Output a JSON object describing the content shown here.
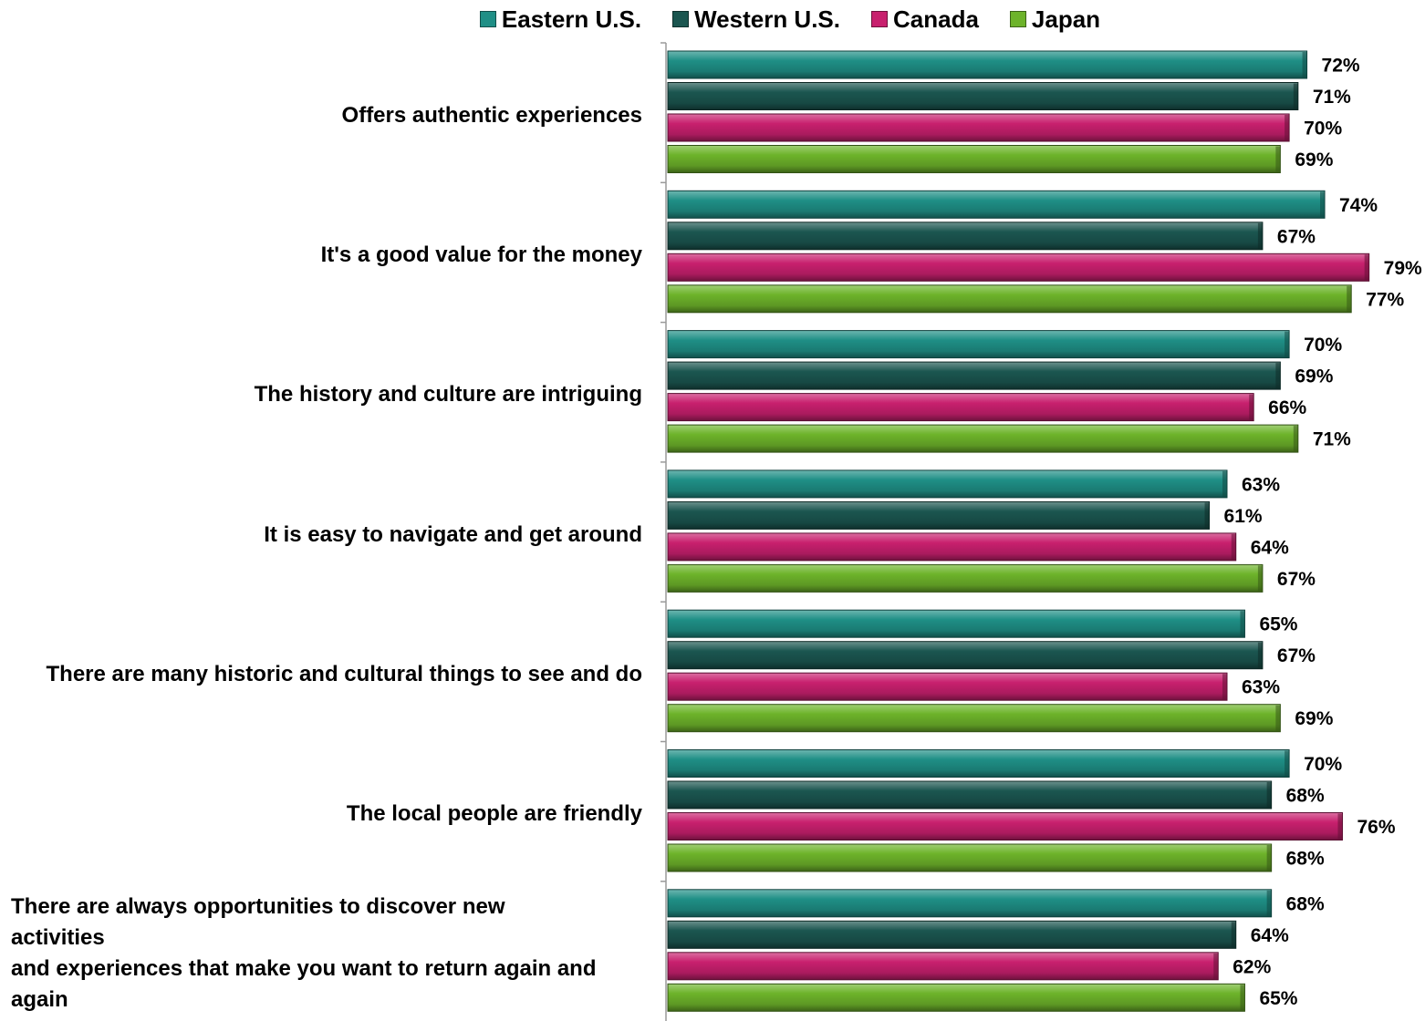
{
  "chart_data": {
    "type": "bar",
    "orientation": "horizontal",
    "title": "",
    "xlabel": "",
    "ylabel": "",
    "xlim": [
      0,
      100
    ],
    "legend_position": "top-center",
    "grid": false,
    "categories": [
      "Offers authentic experiences",
      "It's a good value for the money",
      "The history and culture are intriguing",
      "It is easy to navigate and get around",
      "There are many historic and cultural things to see and do",
      "The local people are friendly",
      "There are always opportunities to discover new activities and experiences that make you want to return again and again"
    ],
    "series": [
      {
        "name": "Eastern U.S.",
        "color": "#1f8f86",
        "values": [
          72,
          74,
          70,
          63,
          65,
          70,
          68
        ]
      },
      {
        "name": "Western U.S.",
        "color": "#1b5650",
        "values": [
          71,
          67,
          69,
          61,
          67,
          68,
          64
        ]
      },
      {
        "name": "Canada",
        "color": "#c8206e",
        "values": [
          70,
          79,
          66,
          64,
          63,
          76,
          62
        ]
      },
      {
        "name": "Japan",
        "color": "#6db32a",
        "values": [
          69,
          77,
          71,
          67,
          69,
          68,
          65
        ]
      }
    ],
    "value_labels": [
      [
        "72%",
        "71%",
        "70%",
        "69%"
      ],
      [
        "74%",
        "67%",
        "79%",
        "77%"
      ],
      [
        "70%",
        "69%",
        "66%",
        "71%"
      ],
      [
        "63%",
        "61%",
        "64%",
        "67%"
      ],
      [
        "65%",
        "67%",
        "63%",
        "69%"
      ],
      [
        "70%",
        "68%",
        "76%",
        "68%"
      ],
      [
        "68%",
        "64%",
        "62%",
        "65%"
      ]
    ]
  },
  "category_display_lines": [
    [
      "Offers authentic experiences"
    ],
    [
      "It's a good value for the money"
    ],
    [
      "The history and culture are intriguing"
    ],
    [
      "It is easy to navigate and get around"
    ],
    [
      "There are many historic and cultural things to see and do"
    ],
    [
      "The local people are friendly"
    ],
    [
      "There are always opportunities to discover new",
      "activities",
      "and experiences that make you want to return again and",
      "again"
    ]
  ]
}
